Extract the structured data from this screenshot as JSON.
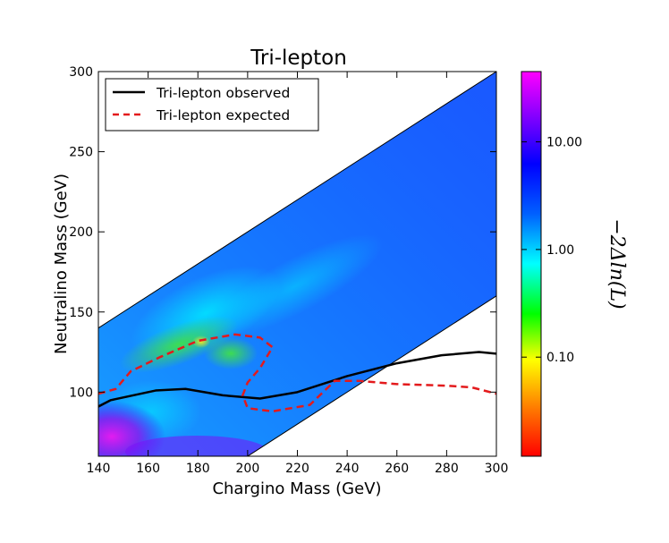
{
  "chart_data": {
    "type": "heatmap",
    "title": "Tri-lepton",
    "xlabel": "Chargino Mass (GeV)",
    "ylabel": "Neutralino Mass (GeV)",
    "xlim": [
      140,
      300
    ],
    "ylim": [
      60,
      300
    ],
    "xticks": [
      "140",
      "160",
      "180",
      "200",
      "220",
      "240",
      "260",
      "280",
      "300"
    ],
    "yticks": [
      "100",
      "150",
      "200",
      "250",
      "300"
    ],
    "region": {
      "description_boundary_upper": [
        [
          140,
          140
        ],
        [
          300,
          300
        ]
      ],
      "description_boundary_lower": [
        [
          200,
          60
        ],
        [
          300,
          160
        ]
      ]
    },
    "colorbar": {
      "label": "−2Δln(L)",
      "scale": "log",
      "range": [
        0.012,
        45
      ],
      "ticks": [
        {
          "value": 10,
          "label": "10.00"
        },
        {
          "value": 1,
          "label": "1.00"
        },
        {
          "value": 0.1,
          "label": "0.10"
        }
      ]
    },
    "legend": {
      "position": "top-left",
      "entries": [
        {
          "label": "Tri-lepton observed",
          "style": "solid",
          "color": "#000000"
        },
        {
          "label": "Tri-lepton expected",
          "style": "dashed",
          "color": "#e31a1c"
        }
      ]
    },
    "series": [
      {
        "name": "Tri-lepton observed",
        "x": [
          140,
          145,
          163,
          175,
          190,
          205,
          220,
          240,
          260,
          278,
          293,
          300
        ],
        "y": [
          91,
          95,
          101,
          102,
          98,
          96,
          100,
          110,
          118,
          123,
          125,
          124
        ]
      },
      {
        "name": "Tri-lepton expected",
        "x": [
          140,
          147,
          153,
          165,
          180,
          195,
          205,
          210,
          205,
          200,
          198,
          200,
          210,
          225,
          235,
          245,
          260,
          280,
          290,
          300
        ],
        "y": [
          99,
          102,
          113,
          122,
          132,
          136,
          134,
          128,
          115,
          106,
          98,
          90,
          88,
          92,
          107,
          107,
          105,
          104,
          103,
          99
        ]
      }
    ]
  }
}
